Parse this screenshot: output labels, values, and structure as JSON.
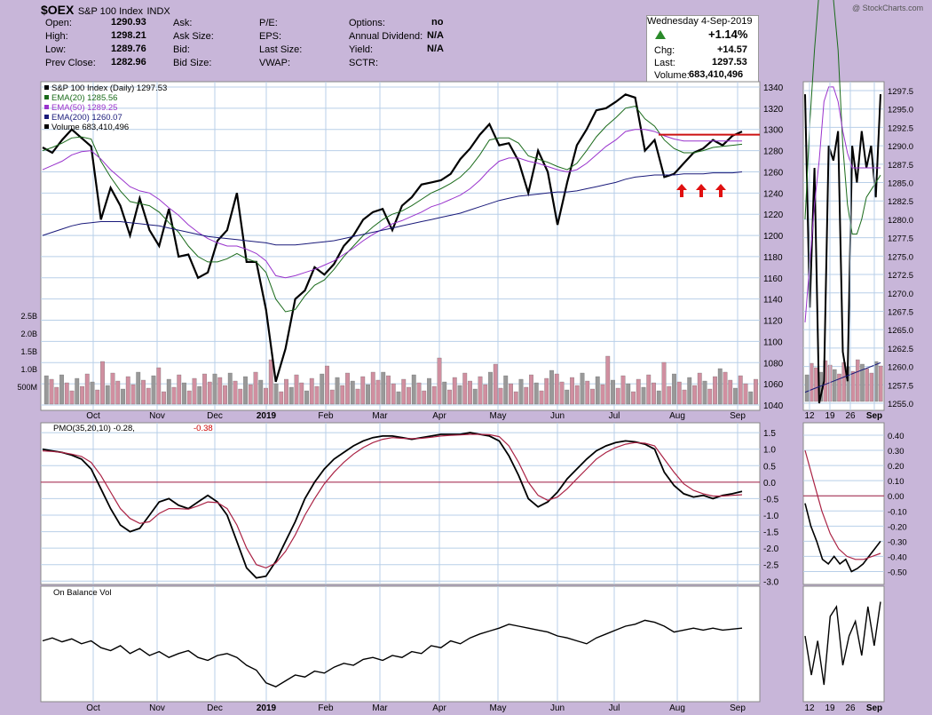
{
  "header": {
    "symbol": "$OEX",
    "name": "S&P 100 Index",
    "exchange": "INDX",
    "watermark": "@ StockCharts.com",
    "date": "Wednesday  4-Sep-2019",
    "pct_change": "+1.14%",
    "fields": [
      {
        "label": "Open:",
        "value": "1290.93"
      },
      {
        "label": "High:",
        "value": "1298.21"
      },
      {
        "label": "Low:",
        "value": "1289.76"
      },
      {
        "label": "Prev Close:",
        "value": "1282.96"
      }
    ],
    "fields2": [
      {
        "label": "Ask:",
        "value": ""
      },
      {
        "label": "Ask Size:",
        "value": ""
      },
      {
        "label": "Bid:",
        "value": ""
      },
      {
        "label": "Bid Size:",
        "value": ""
      }
    ],
    "fields3": [
      {
        "label": "P/E:",
        "value": ""
      },
      {
        "label": "EPS:",
        "value": ""
      },
      {
        "label": "Last Size:",
        "value": ""
      },
      {
        "label": "VWAP:",
        "value": ""
      }
    ],
    "fields4": [
      {
        "label": "Options:",
        "value": "no"
      },
      {
        "label": "Annual Dividend:",
        "value": "N/A"
      },
      {
        "label": "Yield:",
        "value": "N/A"
      },
      {
        "label": "SCTR:",
        "value": ""
      }
    ],
    "right": [
      {
        "label": "Chg:",
        "value": "+14.57"
      },
      {
        "label": "Last:",
        "value": "1297.53"
      },
      {
        "label": "Volume:",
        "value": "683,410,496"
      }
    ],
    "colors": {
      "up": "#2a8a2a",
      "background": "#c8b6d9"
    }
  },
  "chart_data": [
    {
      "type": "line",
      "panel": "price",
      "legend": [
        {
          "name": "S&P 100 Index (Daily) 1297.53",
          "color": "#000000"
        },
        {
          "name": "EMA(20) 1285.56",
          "color": "#1b6b1b"
        },
        {
          "name": "EMA(50) 1289.25",
          "color": "#9933cc"
        },
        {
          "name": "EMA(200) 1260.07",
          "color": "#1a1a7a"
        },
        {
          "name": "Volume 683,410,496",
          "color": "#000000"
        }
      ],
      "x_labels": [
        "Oct",
        "Nov",
        "Dec",
        "2019",
        "Feb",
        "Mar",
        "Apr",
        "May",
        "Jun",
        "Jul",
        "Aug",
        "Sep"
      ],
      "y_ticks": [
        1040,
        1060,
        1080,
        1100,
        1120,
        1140,
        1160,
        1180,
        1200,
        1220,
        1240,
        1260,
        1280,
        1300,
        1320,
        1340
      ],
      "ylim": [
        1035,
        1345
      ],
      "volume_ticks": [
        "500M",
        "1.0B",
        "1.5B",
        "2.0B",
        "2.5B"
      ],
      "resistance_level": 1295,
      "series": [
        {
          "name": "S&P 100 Index",
          "color": "#000000",
          "values": [
            1283,
            1278,
            1290,
            1300,
            1292,
            1284,
            1215,
            1245,
            1228,
            1200,
            1235,
            1205,
            1190,
            1225,
            1180,
            1182,
            1160,
            1165,
            1195,
            1205,
            1240,
            1175,
            1175,
            1130,
            1062,
            1093,
            1140,
            1148,
            1170,
            1163,
            1173,
            1190,
            1200,
            1215,
            1222,
            1225,
            1205,
            1228,
            1236,
            1248,
            1250,
            1252,
            1258,
            1272,
            1282,
            1295,
            1305,
            1285,
            1287,
            1270,
            1240,
            1280,
            1260,
            1210,
            1250,
            1285,
            1300,
            1318,
            1320,
            1326,
            1333,
            1330,
            1280,
            1290,
            1255,
            1258,
            1268,
            1278,
            1282,
            1290,
            1285,
            1294,
            1298
          ]
        },
        {
          "name": "EMA(20)",
          "color": "#1b6b1b",
          "values": [
            1280,
            1283,
            1287,
            1292,
            1293,
            1291,
            1270,
            1255,
            1242,
            1232,
            1230,
            1228,
            1222,
            1212,
            1203,
            1190,
            1180,
            1175,
            1175,
            1178,
            1183,
            1178,
            1175,
            1165,
            1140,
            1128,
            1130,
            1143,
            1153,
            1158,
            1168,
            1180,
            1190,
            1200,
            1208,
            1215,
            1220,
            1223,
            1228,
            1234,
            1240,
            1244,
            1249,
            1255,
            1264,
            1276,
            1290,
            1292,
            1292,
            1287,
            1275,
            1272,
            1269,
            1265,
            1262,
            1268,
            1280,
            1293,
            1303,
            1311,
            1320,
            1322,
            1310,
            1303,
            1290,
            1282,
            1278,
            1278,
            1280,
            1283,
            1284,
            1285,
            1286
          ]
        },
        {
          "name": "EMA(50)",
          "color": "#9933cc",
          "values": [
            1262,
            1266,
            1270,
            1276,
            1279,
            1280,
            1272,
            1262,
            1254,
            1246,
            1242,
            1240,
            1234,
            1226,
            1219,
            1210,
            1203,
            1197,
            1193,
            1190,
            1190,
            1187,
            1183,
            1176,
            1162,
            1160,
            1162,
            1165,
            1168,
            1172,
            1176,
            1182,
            1188,
            1195,
            1201,
            1206,
            1211,
            1214,
            1218,
            1222,
            1227,
            1230,
            1234,
            1238,
            1244,
            1252,
            1262,
            1270,
            1273,
            1273,
            1270,
            1268,
            1265,
            1262,
            1260,
            1262,
            1268,
            1276,
            1284,
            1290,
            1298,
            1300,
            1300,
            1298,
            1294,
            1291,
            1289,
            1289,
            1289,
            1289,
            1289,
            1289,
            1289
          ]
        },
        {
          "name": "EMA(200)",
          "color": "#1a1a7a",
          "values": [
            1200,
            1203,
            1206,
            1209,
            1211,
            1212,
            1213,
            1213,
            1213,
            1212,
            1211,
            1210,
            1209,
            1207,
            1205,
            1203,
            1201,
            1199,
            1198,
            1197,
            1196,
            1195,
            1194,
            1193,
            1191,
            1191,
            1191,
            1192,
            1193,
            1194,
            1195,
            1197,
            1199,
            1201,
            1203,
            1205,
            1207,
            1209,
            1211,
            1213,
            1215,
            1217,
            1219,
            1221,
            1224,
            1227,
            1230,
            1233,
            1235,
            1237,
            1238,
            1239,
            1240,
            1241,
            1241,
            1242,
            1244,
            1246,
            1248,
            1250,
            1253,
            1255,
            1256,
            1257,
            1257,
            1257,
            1258,
            1258,
            1258,
            1259,
            1259,
            1259,
            1260
          ]
        }
      ]
    },
    {
      "type": "line",
      "panel": "pmo",
      "legend": [
        {
          "name": "PMO(35,20,10) -0.28,",
          "color": "#000000"
        },
        {
          "name": "-0.38",
          "color": "#cc0000"
        }
      ],
      "y_ticks": [
        -3.0,
        -2.5,
        -2.0,
        -1.5,
        -1.0,
        -0.5,
        0.0,
        0.5,
        1.0,
        1.5
      ],
      "ylim": [
        -3.1,
        1.8
      ],
      "series": [
        {
          "name": "PMO",
          "color": "#000000",
          "values": [
            1.0,
            0.95,
            0.9,
            0.82,
            0.7,
            0.4,
            -0.2,
            -0.8,
            -1.3,
            -1.5,
            -1.4,
            -1.0,
            -0.6,
            -0.5,
            -0.7,
            -0.8,
            -0.6,
            -0.4,
            -0.6,
            -1.0,
            -1.8,
            -2.6,
            -2.9,
            -2.85,
            -2.4,
            -1.8,
            -1.2,
            -0.5,
            0.0,
            0.4,
            0.7,
            0.9,
            1.1,
            1.25,
            1.35,
            1.4,
            1.4,
            1.35,
            1.3,
            1.35,
            1.4,
            1.45,
            1.45,
            1.45,
            1.5,
            1.45,
            1.4,
            1.25,
            0.8,
            0.2,
            -0.5,
            -0.75,
            -0.6,
            -0.3,
            0.1,
            0.4,
            0.7,
            0.95,
            1.1,
            1.2,
            1.25,
            1.22,
            1.15,
            1.0,
            0.3,
            -0.1,
            -0.35,
            -0.45,
            -0.4,
            -0.5,
            -0.4,
            -0.35,
            -0.28
          ]
        },
        {
          "name": "Signal",
          "color": "#aa2244",
          "values": [
            0.95,
            0.93,
            0.9,
            0.85,
            0.78,
            0.6,
            0.2,
            -0.3,
            -0.8,
            -1.1,
            -1.25,
            -1.2,
            -0.95,
            -0.8,
            -0.8,
            -0.82,
            -0.72,
            -0.6,
            -0.62,
            -0.8,
            -1.3,
            -2.0,
            -2.5,
            -2.6,
            -2.45,
            -2.1,
            -1.6,
            -1.0,
            -0.5,
            -0.05,
            0.3,
            0.6,
            0.85,
            1.05,
            1.2,
            1.3,
            1.35,
            1.33,
            1.32,
            1.33,
            1.36,
            1.4,
            1.42,
            1.43,
            1.45,
            1.45,
            1.44,
            1.38,
            1.1,
            0.6,
            0.0,
            -0.4,
            -0.55,
            -0.45,
            -0.2,
            0.1,
            0.4,
            0.7,
            0.9,
            1.05,
            1.15,
            1.2,
            1.18,
            1.1,
            0.7,
            0.3,
            -0.05,
            -0.25,
            -0.35,
            -0.42,
            -0.42,
            -0.4,
            -0.38
          ]
        }
      ]
    },
    {
      "type": "line",
      "panel": "obv",
      "legend": [
        {
          "name": "On Balance Vol",
          "color": "#000000"
        }
      ],
      "ylim": [
        0,
        100
      ],
      "series": [
        {
          "name": "On Balance Vol",
          "color": "#000000",
          "values": [
            55,
            58,
            54,
            57,
            52,
            55,
            48,
            45,
            50,
            42,
            47,
            40,
            44,
            38,
            42,
            45,
            38,
            35,
            40,
            42,
            38,
            30,
            25,
            12,
            8,
            14,
            20,
            18,
            24,
            22,
            28,
            32,
            30,
            36,
            38,
            35,
            40,
            38,
            44,
            42,
            50,
            48,
            55,
            52,
            58,
            62,
            65,
            68,
            72,
            70,
            68,
            66,
            64,
            60,
            58,
            55,
            52,
            58,
            62,
            66,
            70,
            72,
            76,
            74,
            70,
            64,
            66,
            68,
            66,
            68,
            66,
            67,
            68
          ]
        }
      ]
    },
    {
      "type": "line",
      "panel": "inset",
      "x_labels": [
        "12",
        "19",
        "26",
        "Sep"
      ],
      "price_y_ticks": [
        1255.0,
        1257.5,
        1260.0,
        1262.5,
        1265.0,
        1267.5,
        1270.0,
        1272.5,
        1275.0,
        1277.5,
        1280.0,
        1282.5,
        1285.0,
        1287.5,
        1290.0,
        1292.5,
        1295.0,
        1297.5
      ],
      "pmo_y_ticks": [
        -0.5,
        -0.4,
        -0.3,
        -0.2,
        -0.1,
        0.0,
        0.1,
        0.2,
        0.3,
        0.4
      ],
      "series": [
        {
          "name": "Inset Price",
          "color": "#000000",
          "values": [
            1297,
            1268,
            1287,
            1255,
            1258,
            1290,
            1288,
            1292,
            1262,
            1258,
            1290,
            1285,
            1292,
            1287,
            1290,
            1283,
            1297
          ]
        },
        {
          "name": "Inset PMO",
          "color": "#000000",
          "values": [
            -0.05,
            -0.2,
            -0.3,
            -0.42,
            -0.45,
            -0.4,
            -0.45,
            -0.42,
            -0.5,
            -0.48,
            -0.45,
            -0.4,
            -0.35,
            -0.3
          ]
        },
        {
          "name": "Inset OBV",
          "color": "#000000",
          "values": [
            60,
            20,
            55,
            10,
            80,
            90,
            30,
            60,
            75,
            40,
            90,
            50,
            95
          ]
        }
      ]
    }
  ]
}
